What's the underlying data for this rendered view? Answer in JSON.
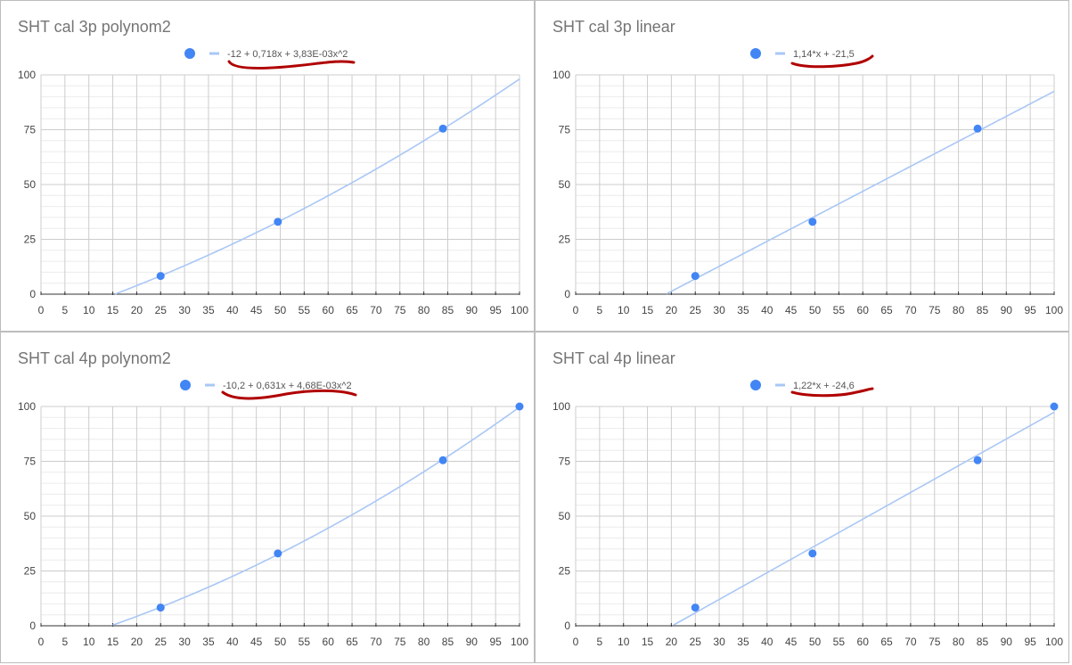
{
  "chart_data": [
    {
      "type": "scatter",
      "title": "SHT cal 3p polynom2",
      "legend_label": "-12 + 0,718x + 3,83E-03x^2",
      "legend_position": "top",
      "trendline": {
        "kind": "polynomial",
        "coefficients": [
          -12,
          0.718,
          0.00383
        ]
      },
      "points": [
        {
          "x": 25,
          "y": 8.3
        },
        {
          "x": 49.5,
          "y": 33
        },
        {
          "x": 84,
          "y": 75.5
        }
      ],
      "xlim": [
        0,
        100
      ],
      "ylim": [
        0,
        100
      ],
      "xticks": [
        0,
        5,
        10,
        15,
        20,
        25,
        30,
        35,
        40,
        45,
        50,
        55,
        60,
        65,
        70,
        75,
        80,
        85,
        90,
        95,
        100
      ],
      "yticks": [
        0,
        25,
        50,
        75,
        100
      ],
      "grid": true
    },
    {
      "type": "scatter",
      "title": "SHT cal 3p linear",
      "legend_label": "1,14*x + -21,5",
      "legend_position": "top",
      "trendline": {
        "kind": "linear",
        "coefficients": [
          -21.5,
          1.14
        ]
      },
      "points": [
        {
          "x": 25,
          "y": 8.3
        },
        {
          "x": 49.5,
          "y": 33
        },
        {
          "x": 84,
          "y": 75.5
        }
      ],
      "xlim": [
        0,
        100
      ],
      "ylim": [
        0,
        100
      ],
      "xticks": [
        0,
        5,
        10,
        15,
        20,
        25,
        30,
        35,
        40,
        45,
        50,
        55,
        60,
        65,
        70,
        75,
        80,
        85,
        90,
        95,
        100
      ],
      "yticks": [
        0,
        25,
        50,
        75,
        100
      ],
      "grid": true
    },
    {
      "type": "scatter",
      "title": "SHT cal 4p polynom2",
      "legend_label": "-10,2 + 0,631x + 4,68E-03x^2",
      "legend_position": "top",
      "trendline": {
        "kind": "polynomial",
        "coefficients": [
          -10.2,
          0.631,
          0.00468
        ]
      },
      "points": [
        {
          "x": 25,
          "y": 8.3
        },
        {
          "x": 49.5,
          "y": 33
        },
        {
          "x": 84,
          "y": 75.5
        },
        {
          "x": 100,
          "y": 100
        }
      ],
      "xlim": [
        0,
        100
      ],
      "ylim": [
        0,
        100
      ],
      "xticks": [
        0,
        5,
        10,
        15,
        20,
        25,
        30,
        35,
        40,
        45,
        50,
        55,
        60,
        65,
        70,
        75,
        80,
        85,
        90,
        95,
        100
      ],
      "yticks": [
        0,
        25,
        50,
        75,
        100
      ],
      "grid": true
    },
    {
      "type": "scatter",
      "title": "SHT cal 4p linear",
      "legend_label": "1,22*x + -24,6",
      "legend_position": "top",
      "trendline": {
        "kind": "linear",
        "coefficients": [
          -24.6,
          1.22
        ]
      },
      "points": [
        {
          "x": 25,
          "y": 8.3
        },
        {
          "x": 49.5,
          "y": 33
        },
        {
          "x": 84,
          "y": 75.5
        },
        {
          "x": 100,
          "y": 100
        }
      ],
      "xlim": [
        0,
        100
      ],
      "ylim": [
        0,
        100
      ],
      "xticks": [
        0,
        5,
        10,
        15,
        20,
        25,
        30,
        35,
        40,
        45,
        50,
        55,
        60,
        65,
        70,
        75,
        80,
        85,
        90,
        95,
        100
      ],
      "yticks": [
        0,
        25,
        50,
        75,
        100
      ],
      "grid": true
    }
  ],
  "colors": {
    "point": "#4285f4",
    "trendline": "#a9c7f5",
    "grid_major": "#cccccc",
    "grid_minor": "#ebebeb",
    "axis": "#333333",
    "tick_text": "#444444",
    "title_text": "#757575",
    "legend_text": "#555555",
    "annotation_underline": "#b00000"
  }
}
